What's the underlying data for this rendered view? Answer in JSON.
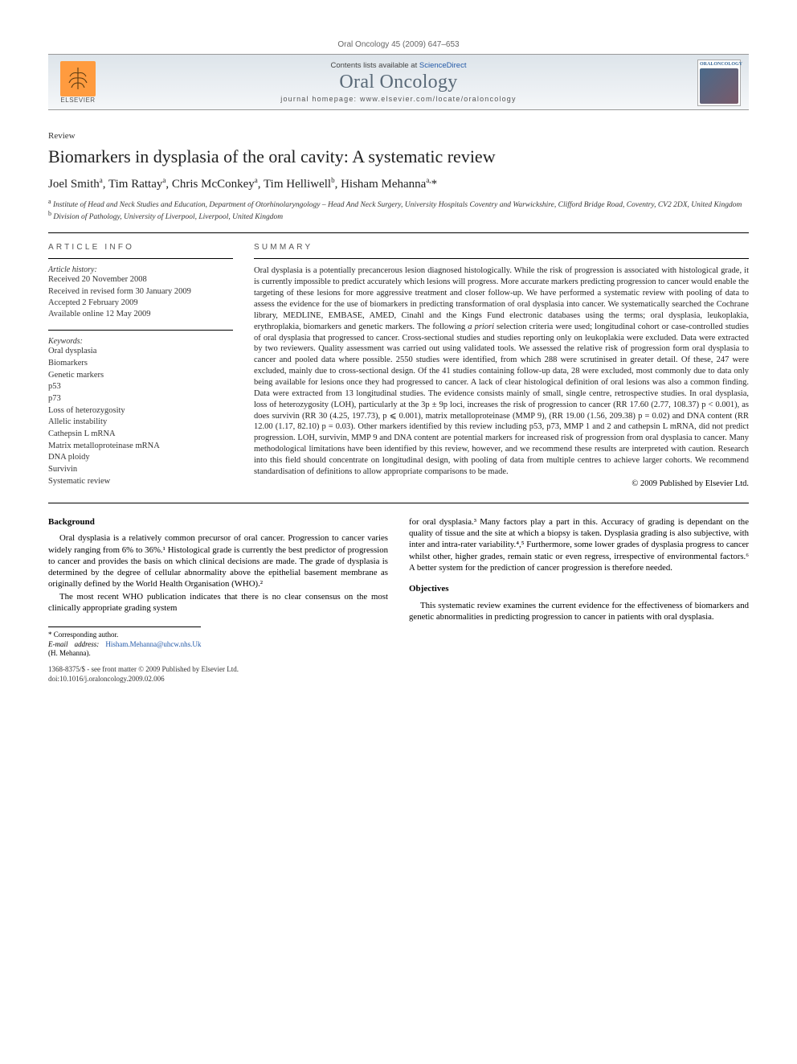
{
  "header": {
    "citation": "Oral Oncology 45 (2009) 647–653",
    "contents_prefix": "Contents lists available at ",
    "contents_link": "ScienceDirect",
    "journal_name": "Oral Oncology",
    "homepage_prefix": "journal homepage: ",
    "homepage_url": "www.elsevier.com/locate/oraloncology",
    "publisher_name": "ELSEVIER",
    "cover_label": "ORALONCOLOGY"
  },
  "article": {
    "type": "Review",
    "title": "Biomarkers in dysplasia of the oral cavity: A systematic review",
    "authors_html": "Joel Smith<sup>a</sup>, Tim Rattay<sup>a</sup>, Chris McConkey<sup>a</sup>, Tim Helliwell<sup>b</sup>, Hisham Mehanna<sup>a,</sup><span class='star'>*</span>",
    "affiliations": {
      "a": "Institute of Head and Neck Studies and Education, Department of Otorhinolaryngology – Head And Neck Surgery, University Hospitals Coventry and Warwickshire, Clifford Bridge Road, Coventry, CV2 2DX, United Kingdom",
      "b": "Division of Pathology, University of Liverpool, Liverpool, United Kingdom"
    }
  },
  "article_info": {
    "heading": "ARTICLE INFO",
    "history_label": "Article history:",
    "history": [
      "Received 20 November 2008",
      "Received in revised form 30 January 2009",
      "Accepted 2 February 2009",
      "Available online 12 May 2009"
    ],
    "keywords_label": "Keywords:",
    "keywords": [
      "Oral dysplasia",
      "Biomarkers",
      "Genetic markers",
      "p53",
      "p73",
      "Loss of heterozygosity",
      "Allelic instability",
      "Cathepsin L mRNA",
      "Matrix metalloproteinase mRNA",
      "DNA ploidy",
      "Survivin",
      "Systematic review"
    ]
  },
  "summary": {
    "heading": "SUMMARY",
    "text": "Oral dysplasia is a potentially precancerous lesion diagnosed histologically. While the risk of progression is associated with histological grade, it is currently impossible to predict accurately which lesions will progress. More accurate markers predicting progression to cancer would enable the targeting of these lesions for more aggressive treatment and closer follow-up. We have performed a systematic review with pooling of data to assess the evidence for the use of biomarkers in predicting transformation of oral dysplasia into cancer. We systematically searched the Cochrane library, MEDLINE, EMBASE, AMED, Cinahl and the Kings Fund electronic databases using the terms; oral dysplasia, leukoplakia, erythroplakia, biomarkers and genetic markers. The following a priori selection criteria were used; longitudinal cohort or case-controlled studies of oral dysplasia that progressed to cancer. Cross-sectional studies and studies reporting only on leukoplakia were excluded. Data were extracted by two reviewers. Quality assessment was carried out using validated tools. We assessed the relative risk of progression form oral dysplasia to cancer and pooled data where possible. 2550 studies were identified, from which 288 were scrutinised in greater detail. Of these, 247 were excluded, mainly due to cross-sectional design. Of the 41 studies containing follow-up data, 28 were excluded, most commonly due to data only being available for lesions once they had progressed to cancer. A lack of clear histological definition of oral lesions was also a common finding. Data were extracted from 13 longitudinal studies. The evidence consists mainly of small, single centre, retrospective studies. In oral dysplasia, loss of heterozygosity (LOH), particularly at the 3p ± 9p loci, increases the risk of progression to cancer (RR 17.60 (2.77, 108.37) p < 0.001), as does survivin (RR 30 (4.25, 197.73), p ⩽ 0.001), matrix metalloproteinase (MMP 9), (RR 19.00 (1.56, 209.38) p = 0.02) and DNA content (RR 12.00 (1.17, 82.10) p = 0.03). Other markers identified by this review including p53, p73, MMP 1 and 2 and cathepsin L mRNA, did not predict progression. LOH, survivin, MMP 9 and DNA content are potential markers for increased risk of progression from oral dysplasia to cancer. Many methodological limitations have been identified by this review, however, and we recommend these results are interpreted with caution. Research into this field should concentrate on longitudinal design, with pooling of data from multiple centres to achieve larger cohorts. We recommend standardisation of definitions to allow appropriate comparisons to be made.",
    "copyright": "© 2009 Published by Elsevier Ltd."
  },
  "body": {
    "background_heading": "Background",
    "background_p1": "Oral dysplasia is a relatively common precursor of oral cancer. Progression to cancer varies widely ranging from 6% to 36%.¹ Histological grade is currently the best predictor of progression to cancer and provides the basis on which clinical decisions are made. The grade of dysplasia is determined by the degree of cellular abnormality above the epithelial basement membrane as originally defined by the World Health Organisation (WHO).²",
    "background_p2": "The most recent WHO publication indicates that there is no clear consensus on the most clinically appropriate grading system",
    "col2_p1": "for oral dysplasia.³ Many factors play a part in this. Accuracy of grading is dependant on the quality of tissue and the site at which a biopsy is taken. Dysplasia grading is also subjective, with inter and intra-rater variability.⁴,⁵ Furthermore, some lower grades of dysplasia progress to cancer whilst other, higher grades, remain static or even regress, irrespective of environmental factors.⁶ A better system for the prediction of cancer progression is therefore needed.",
    "objectives_heading": "Objectives",
    "objectives_p1": "This systematic review examines the current evidence for the effectiveness of biomarkers and genetic abnormalities in predicting progression to cancer in patients with oral dysplasia."
  },
  "footnotes": {
    "corresponding": "* Corresponding author.",
    "email_label": "E-mail address:",
    "email": "Hisham.Mehanna@uhcw.nhs.Uk",
    "email_person": "(H. Mehanna).",
    "issn_line": "1368-8375/$ - see front matter © 2009 Published by Elsevier Ltd.",
    "doi": "doi:10.1016/j.oraloncology.2009.02.006"
  },
  "colors": {
    "link": "#2359a8",
    "journal_title": "#5a6a78",
    "gradient_top": "#dde4ea",
    "gradient_bottom": "#f5f7f9",
    "elsevier_orange": "#ff9b3f"
  }
}
